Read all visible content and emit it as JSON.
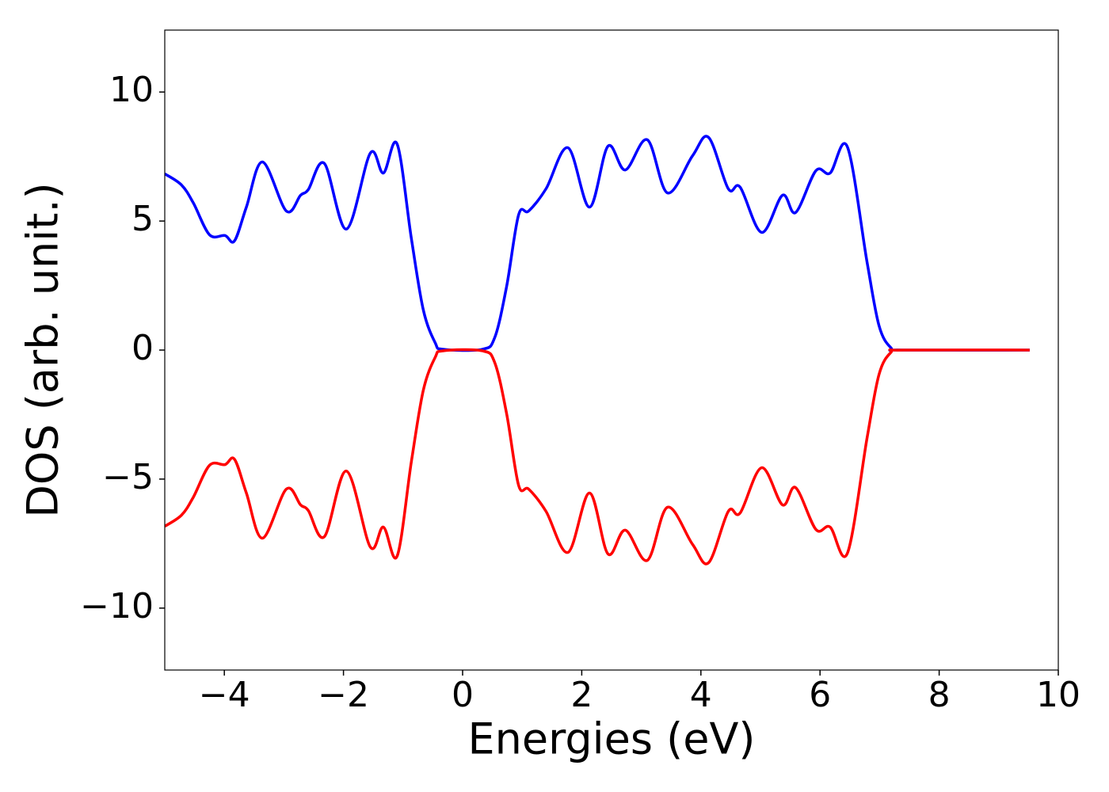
{
  "chart_data": {
    "type": "line",
    "xlabel": "Energies (eV)",
    "ylabel": "DOS (arb. unit.)",
    "x": [
      -5,
      -4.72,
      -4.52,
      -4.25,
      -3.99,
      -3.83,
      -3.63,
      -3.36,
      -2.96,
      -2.72,
      -2.59,
      -2.32,
      -1.95,
      -1.55,
      -1.33,
      -1.1,
      -0.86,
      -0.66,
      -0.46,
      -0.33,
      0.33,
      0.54,
      0.74,
      0.94,
      1.11,
      1.4,
      1.77,
      2.13,
      2.44,
      2.73,
      3.1,
      3.44,
      3.86,
      4.13,
      4.46,
      4.66,
      5.02,
      5.37,
      5.59,
      5.93,
      6.17,
      6.46,
      6.79,
      6.99,
      7.19,
      7.39,
      9.52
    ],
    "series": [
      {
        "color": "#0000ff",
        "values": [
          6.83,
          6.4,
          5.7,
          4.47,
          4.44,
          4.23,
          5.54,
          7.29,
          5.39,
          6.0,
          6.22,
          7.23,
          4.69,
          7.63,
          6.86,
          7.99,
          4.32,
          1.56,
          0.28,
          0.03,
          0.03,
          0.49,
          2.48,
          5.24,
          5.39,
          6.25,
          7.84,
          5.54,
          7.9,
          6.98,
          8.15,
          6.09,
          7.53,
          8.24,
          6.25,
          6.31,
          4.56,
          6.0,
          5.33,
          6.95,
          6.86,
          7.87,
          3.4,
          0.95,
          0.09,
          0,
          0
        ]
      },
      {
        "color": "#ff0000",
        "values": [
          -6.83,
          -6.4,
          -5.7,
          -4.47,
          -4.44,
          -4.23,
          -5.54,
          -7.29,
          -5.39,
          -6.0,
          -6.22,
          -7.23,
          -4.69,
          -7.63,
          -6.86,
          -7.99,
          -4.32,
          -1.56,
          -0.28,
          -0.03,
          -0.03,
          -0.49,
          -2.48,
          -5.24,
          -5.39,
          -6.25,
          -7.84,
          -5.54,
          -7.9,
          -6.98,
          -8.15,
          -6.09,
          -7.53,
          -8.24,
          -6.25,
          -6.31,
          -4.56,
          -6.0,
          -5.33,
          -6.95,
          -6.86,
          -7.87,
          -3.4,
          -0.95,
          -0.09,
          0,
          0
        ]
      }
    ],
    "xlim": [
      -5,
      10
    ],
    "ylim": [
      -12.4,
      12.4
    ],
    "xticks": [
      {
        "value": -4,
        "label": "−4"
      },
      {
        "value": -2,
        "label": "−2"
      },
      0,
      2,
      4,
      6,
      8,
      10
    ],
    "yticks": [
      {
        "value": -10,
        "label": "−10"
      },
      {
        "value": -5,
        "label": "−5"
      },
      0,
      5,
      10
    ]
  }
}
